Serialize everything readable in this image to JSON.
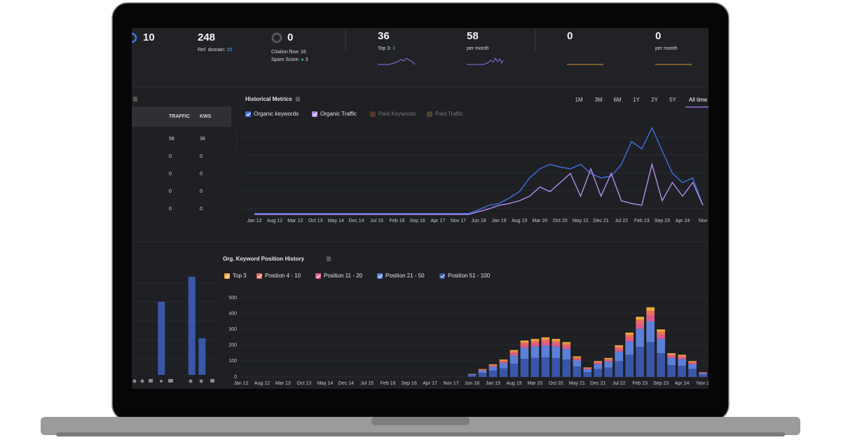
{
  "stats": [
    {
      "value": 10
    },
    {
      "value": 248,
      "label": "Ref. domain:",
      "sub": 55
    },
    {
      "value": 0,
      "citation": "Citation flow: 16",
      "spam_label": "Spam Score:",
      "spam": 3
    },
    {
      "value": 36,
      "label": "Top 3:",
      "sub": 3
    },
    {
      "value": 58,
      "label": "per month"
    },
    {
      "value": 0
    },
    {
      "value": 0,
      "label": "per month"
    }
  ],
  "table": {
    "headers": [
      "TRAFFIC",
      "KWS"
    ],
    "rows": [
      [
        58,
        36
      ],
      [
        0,
        0
      ],
      [
        0,
        0
      ],
      [
        0,
        0
      ],
      [
        0,
        0
      ]
    ]
  },
  "ranges": {
    "options": [
      "1M",
      "3M",
      "6M",
      "1Y",
      "2Y",
      "5Y",
      "All time"
    ],
    "active": 6
  },
  "historical_metrics": {
    "type": "line",
    "title": "Historical Metrics",
    "categories": [
      "Jan 12",
      null,
      "Aug 12",
      null,
      "Mar 13",
      null,
      "Oct 13",
      null,
      "May 14",
      null,
      "Dec 14",
      null,
      "Jul 15",
      null,
      "Feb 16",
      null,
      "Sep 16",
      null,
      "Apr 17",
      null,
      "Nov 17",
      null,
      "Jun 18",
      null,
      "Jan 19",
      null,
      "Aug 19",
      null,
      "Mar 20",
      null,
      "Oct 20",
      null,
      "May 21",
      null,
      "Dec 21",
      null,
      "Jul 22",
      null,
      "Feb 23",
      null,
      "Sep 23",
      null,
      "Apr 24",
      null,
      "Nov"
    ],
    "ylim": [
      0,
      100
    ],
    "series": [
      {
        "name": "Organic keywords",
        "color": "#3f72e0",
        "checked": true,
        "values": [
          1,
          1,
          1,
          1,
          1,
          1,
          1,
          1,
          1,
          1,
          1,
          1,
          1,
          1,
          1,
          1,
          1,
          1,
          1,
          1,
          1,
          1,
          5,
          10,
          12,
          18,
          25,
          40,
          50,
          55,
          52,
          50,
          55,
          45,
          40,
          42,
          55,
          80,
          72,
          95,
          70,
          45,
          35,
          40,
          10
        ]
      },
      {
        "name": "Organic Traffic",
        "color": "#b48cf0",
        "checked": true,
        "values": [
          0,
          0,
          0,
          0,
          0,
          0,
          0,
          0,
          0,
          0,
          0,
          0,
          0,
          0,
          0,
          0,
          0,
          0,
          0,
          0,
          0,
          0,
          3,
          6,
          10,
          12,
          15,
          20,
          30,
          25,
          35,
          45,
          20,
          50,
          20,
          45,
          15,
          12,
          10,
          55,
          15,
          35,
          20,
          35,
          10
        ]
      },
      {
        "name": "Paid Keywords",
        "color": "#7a4a2a",
        "checked": false
      },
      {
        "name": "Paid Traffic",
        "color": "#6e5a36",
        "checked": false
      }
    ]
  },
  "position_history": {
    "type": "bar",
    "stacked": true,
    "title": "Org. Keyword Position History",
    "categories": [
      "Jan 12",
      null,
      "Aug 12",
      null,
      "Mar 13",
      null,
      "Oct 13",
      null,
      "May 14",
      null,
      "Dec 14",
      null,
      "Jul 15",
      null,
      "Feb 16",
      null,
      "Sep 16",
      null,
      "Apr 17",
      null,
      "Nov 17",
      null,
      "Jun 18",
      null,
      "Jan 19",
      null,
      "Aug 19",
      null,
      "Mar 20",
      null,
      "Oct 20",
      null,
      "May 21",
      null,
      "Dec 21",
      null,
      "Jul 22",
      null,
      "Feb 23",
      null,
      "Sep 23",
      null,
      "Apr 24",
      null,
      "Nov 2"
    ],
    "ylim": [
      0,
      500
    ],
    "yticks": [
      0,
      100,
      200,
      300,
      400,
      500
    ],
    "grid": true,
    "series": [
      {
        "name": "Top 3",
        "color": "#f0a83c",
        "checked": true,
        "values": [
          0,
          0,
          0,
          0,
          0,
          0,
          0,
          0,
          0,
          0,
          0,
          0,
          0,
          0,
          0,
          0,
          0,
          0,
          0,
          0,
          0,
          0,
          1,
          3,
          4,
          6,
          9,
          12,
          12,
          13,
          12,
          11,
          7,
          3,
          5,
          6,
          10,
          14,
          19,
          22,
          15,
          8,
          7,
          5,
          2
        ]
      },
      {
        "name": "Position 4 - 10",
        "color": "#e8705f",
        "checked": true,
        "values": [
          0,
          0,
          0,
          0,
          0,
          0,
          0,
          0,
          0,
          0,
          0,
          0,
          0,
          0,
          0,
          0,
          0,
          0,
          0,
          0,
          0,
          0,
          1,
          3,
          6,
          8,
          12,
          16,
          17,
          18,
          17,
          15,
          9,
          4,
          7,
          8,
          14,
          20,
          27,
          31,
          21,
          10,
          10,
          7,
          2
        ]
      },
      {
        "name": "Position 11 - 20",
        "color": "#dd5b8a",
        "checked": true,
        "values": [
          0,
          0,
          0,
          0,
          0,
          0,
          0,
          0,
          0,
          0,
          0,
          0,
          0,
          0,
          0,
          0,
          0,
          0,
          0,
          0,
          0,
          0,
          2,
          4,
          6,
          9,
          14,
          18,
          19,
          20,
          19,
          18,
          10,
          5,
          8,
          10,
          16,
          22,
          30,
          35,
          24,
          12,
          11,
          8,
          2
        ]
      },
      {
        "name": "Position 21 - 50",
        "color": "#5a80d8",
        "checked": true,
        "values": [
          0,
          0,
          0,
          0,
          0,
          0,
          0,
          0,
          0,
          0,
          0,
          0,
          0,
          0,
          0,
          0,
          0,
          0,
          0,
          0,
          0,
          0,
          6,
          15,
          24,
          33,
          51,
          69,
          72,
          75,
          72,
          66,
          39,
          18,
          30,
          36,
          60,
          84,
          114,
          132,
          90,
          45,
          42,
          30,
          9
        ]
      },
      {
        "name": "Position 51 - 100",
        "color": "#3a56a8",
        "checked": true,
        "values": [
          0,
          0,
          0,
          0,
          0,
          0,
          0,
          0,
          0,
          0,
          0,
          0,
          0,
          0,
          0,
          0,
          0,
          0,
          0,
          0,
          0,
          0,
          10,
          25,
          40,
          54,
          84,
          115,
          120,
          124,
          120,
          110,
          65,
          30,
          50,
          60,
          100,
          140,
          190,
          220,
          150,
          75,
          70,
          50,
          15
        ]
      }
    ]
  },
  "mini_chart": {
    "type": "bar",
    "color": "#3a56a8",
    "categories": [
      null,
      null,
      null,
      null,
      null,
      null,
      null,
      null
    ],
    "values": [
      0,
      0,
      108,
      0,
      0,
      145,
      54,
      0
    ],
    "ylim": [
      0,
      150
    ]
  }
}
